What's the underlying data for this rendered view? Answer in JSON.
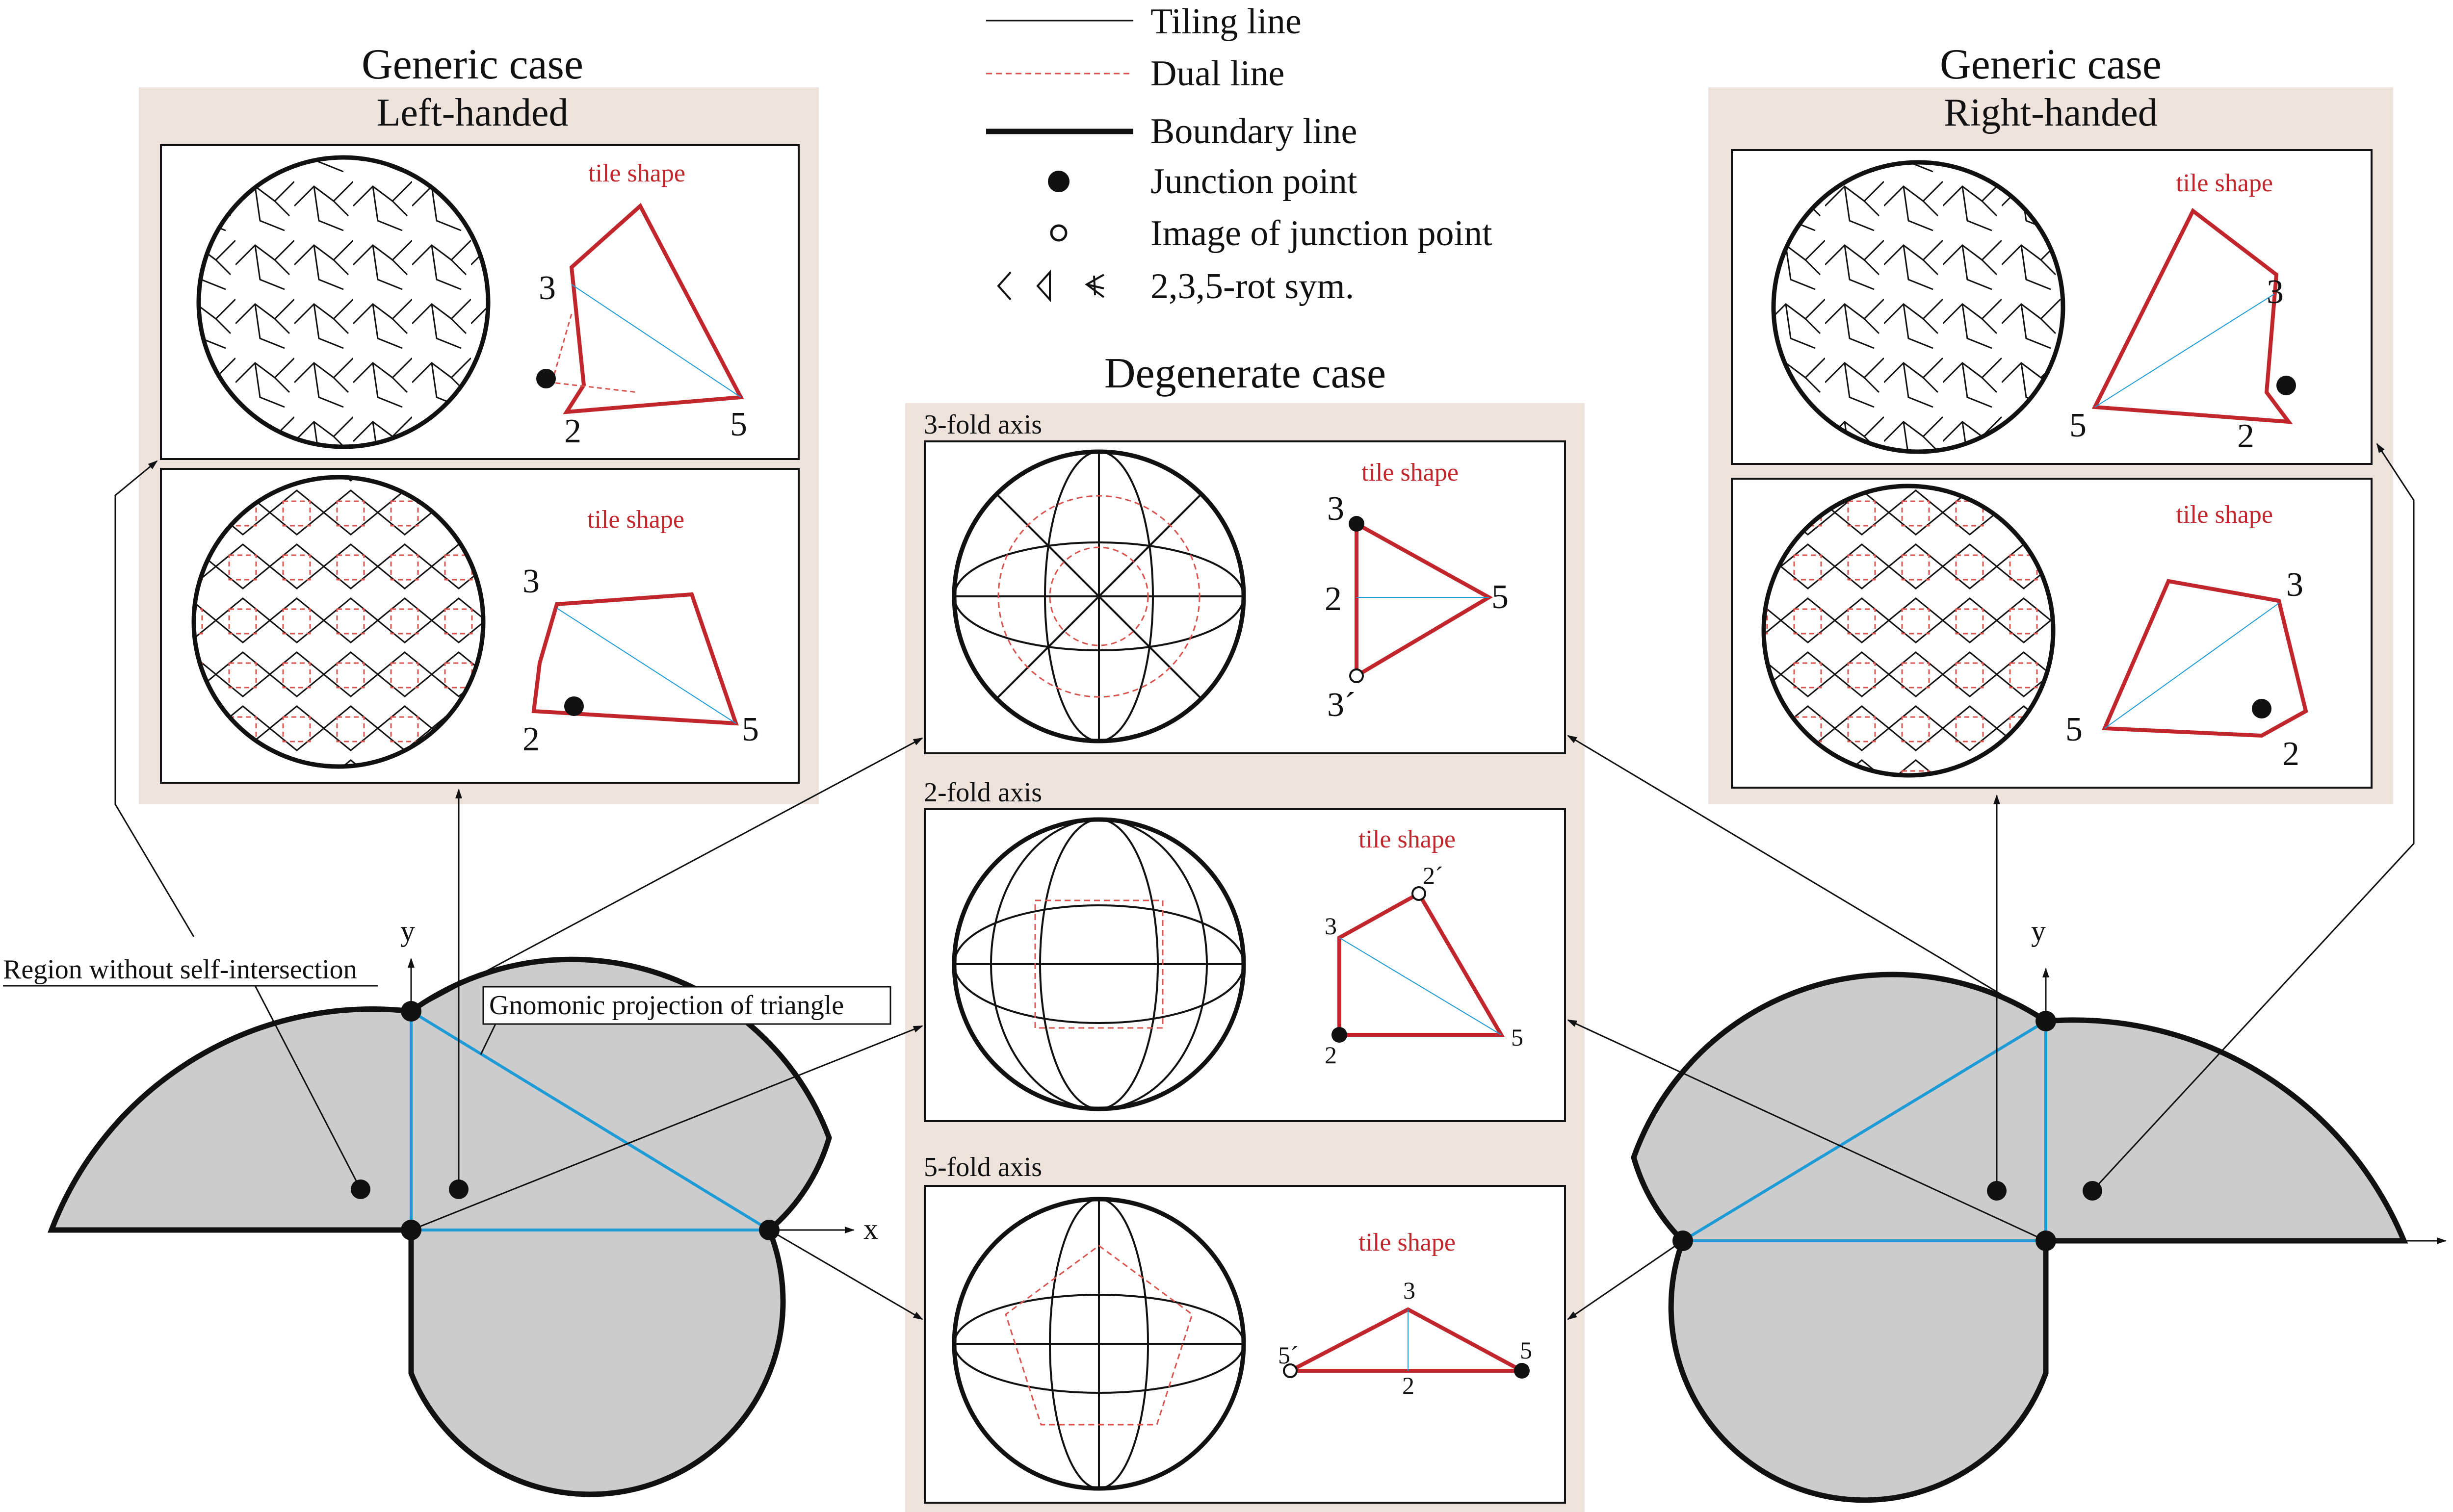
{
  "legend": {
    "tiling_line": "Tiling line",
    "dual_line": "Dual line",
    "boundary_line": "Boundary line",
    "junction_point": "Junction point",
    "image_junction_point": "Image of  junction point",
    "rot_sym": "2,3,5-rot sym."
  },
  "left_panel": {
    "heading": "Generic case",
    "subheading": "Left-handed"
  },
  "right_panel": {
    "heading": "Generic case",
    "subheading": "Right-handed"
  },
  "center_panel": {
    "heading": "Degenerate case",
    "axis3": "3-fold axis",
    "axis2": "2-fold axis",
    "axis5": "5-fold axis"
  },
  "tile_shape_label": "tile shape",
  "vertex_labels": {
    "v2": "2",
    "v3": "3",
    "v5": "5",
    "v3p": "3´",
    "v2p": "2´",
    "v5p": "5´"
  },
  "axes": {
    "x": "x",
    "y": "y"
  },
  "annotations": {
    "region": "Region without self-intersection",
    "gnomonic": "Gnomonic projection of triangle"
  },
  "colors": {
    "tile_outline": "#c0262c",
    "dual_line": "#d9534f",
    "triangle": "#1e9bd7",
    "panel_bg": "#eee3dc",
    "region_fill": "#cccccc"
  }
}
